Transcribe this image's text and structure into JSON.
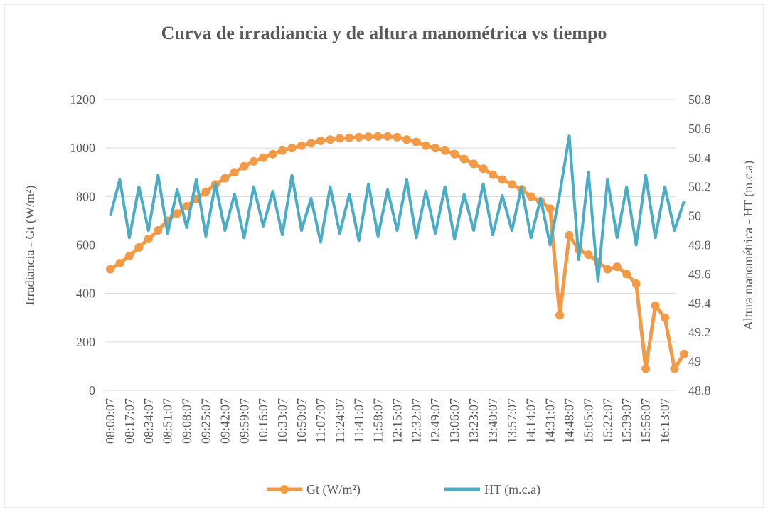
{
  "chart_data": {
    "type": "line",
    "title": "Curva de irradiancia y de altura manométrica vs tiempo",
    "y_label": "Irradiancia - Gt (W/m²)",
    "y2_label": "Altura manométrica - HT (m.c.a)",
    "categories": [
      "08:00:07",
      null,
      "08:17:07",
      null,
      "08:34:07",
      null,
      "08:51:07",
      null,
      "09:08:07",
      null,
      "09:25:07",
      null,
      "09:42:07",
      null,
      "09:59:07",
      null,
      "10:16:07",
      null,
      "10:33:07",
      null,
      "10:50:07",
      null,
      "11:07:07",
      null,
      "11:24:07",
      null,
      "11:41:07",
      null,
      "11:58:07",
      null,
      "12:15:07",
      null,
      "12:32:07",
      null,
      "12:49:07",
      null,
      "13:06:07",
      null,
      "13:23:07",
      null,
      "13:40:07",
      null,
      "13:57:07",
      null,
      "14:14:07",
      null,
      "14:31:07",
      null,
      "14:48:07",
      null,
      "15:05:07",
      null,
      "15:22:07",
      null,
      "15:39:07",
      null,
      "15:56:07",
      null,
      "16:13:07",
      null,
      null
    ],
    "series": [
      {
        "name": "Gt (W/m²)",
        "color": "#f29a45",
        "markers": true,
        "values": [
          500,
          525,
          555,
          590,
          625,
          660,
          700,
          730,
          760,
          790,
          820,
          850,
          875,
          900,
          925,
          945,
          960,
          975,
          990,
          1000,
          1010,
          1020,
          1030,
          1035,
          1040,
          1042,
          1045,
          1047,
          1048,
          1048,
          1045,
          1035,
          1025,
          1010,
          1000,
          990,
          975,
          955,
          935,
          915,
          890,
          870,
          850,
          830,
          800,
          780,
          750,
          310,
          640,
          580,
          560,
          530,
          500,
          510,
          480,
          440,
          90,
          350,
          300,
          90,
          150
        ]
      },
      {
        "name": "HT (m.c.a)",
        "color": "#4bacc6",
        "axis": "y2",
        "markers": false,
        "values": [
          50.0,
          50.25,
          49.85,
          50.2,
          49.9,
          50.28,
          49.88,
          50.18,
          49.92,
          50.25,
          49.86,
          50.22,
          49.9,
          50.15,
          49.85,
          50.2,
          49.93,
          50.17,
          49.87,
          50.28,
          49.9,
          50.12,
          49.82,
          50.2,
          49.88,
          50.15,
          49.83,
          50.22,
          49.86,
          50.18,
          49.9,
          50.25,
          49.85,
          50.17,
          49.88,
          50.2,
          49.84,
          50.15,
          49.9,
          50.22,
          49.87,
          50.14,
          49.9,
          50.2,
          49.85,
          50.12,
          49.8,
          50.15,
          50.55,
          49.7,
          50.3,
          49.55,
          50.25,
          49.85,
          50.2,
          49.8,
          50.28,
          49.85,
          50.2,
          49.9,
          50.1
        ]
      }
    ],
    "ylim": [
      0,
      1200
    ],
    "yticks": [
      0,
      200,
      400,
      600,
      800,
      1000,
      1200
    ],
    "y2lim": [
      48.8,
      50.8
    ],
    "y2ticks": [
      48.8,
      49,
      49.2,
      49.4,
      49.6,
      49.8,
      50,
      50.2,
      50.4,
      50.6,
      50.8
    ],
    "grid": true,
    "legend": "bottom"
  }
}
